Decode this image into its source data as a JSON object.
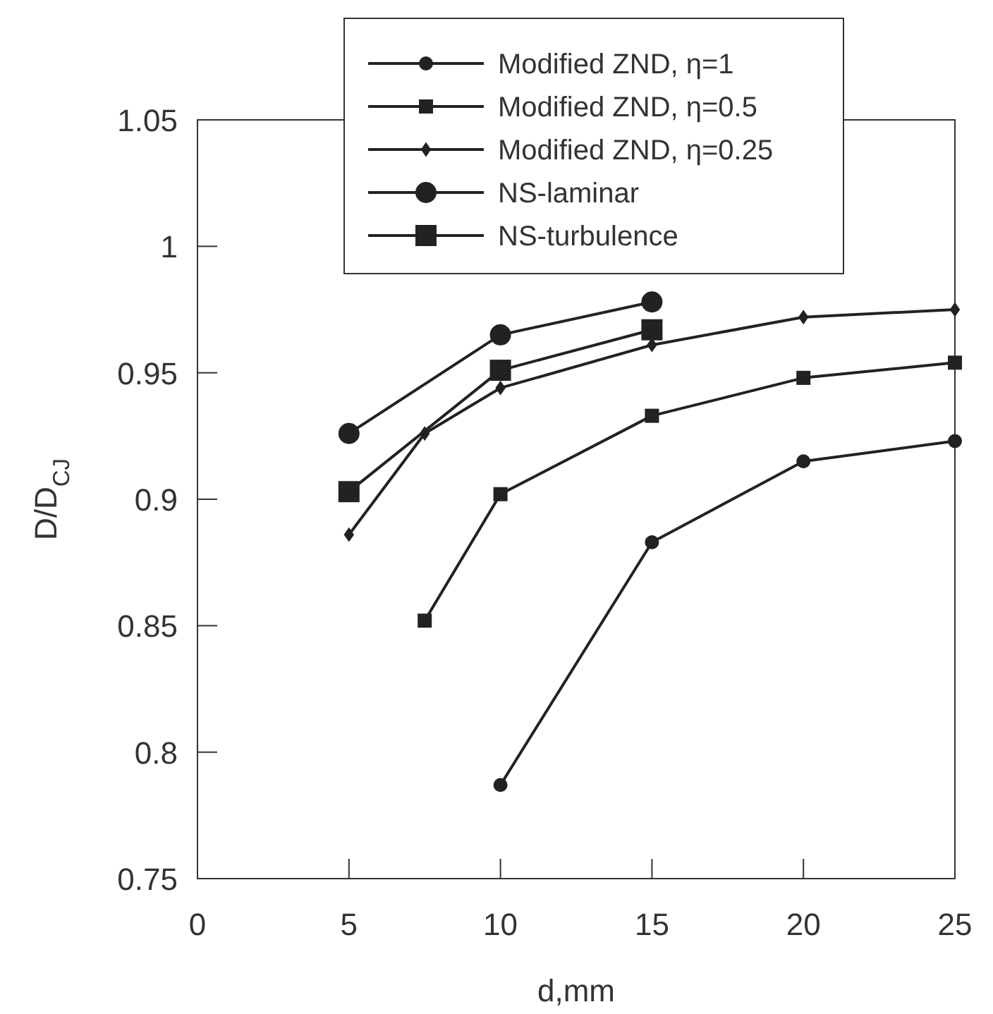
{
  "chart_data": {
    "type": "line",
    "xlabel": "d,mm",
    "ylabel": "D/D$_{CJ}$",
    "xlim": [
      0,
      25
    ],
    "ylim": [
      0.75,
      1.05
    ],
    "xticks": [
      0,
      5,
      10,
      15,
      20,
      25
    ],
    "yticks": [
      0.75,
      0.8,
      0.85,
      0.9,
      0.95,
      1,
      1.05
    ],
    "legend": "top",
    "grid": false,
    "line_style": "solid",
    "series": [
      {
        "name": "Modified ZND, η=1",
        "color": "#222222",
        "marker": "circle",
        "x": [
          10,
          15,
          20,
          25
        ],
        "values": [
          0.787,
          0.883,
          0.915,
          0.923
        ]
      },
      {
        "name": "Modified ZND, η=0.5",
        "color": "#222222",
        "marker": "square",
        "x": [
          7.5,
          10,
          15,
          20,
          25
        ],
        "values": [
          0.852,
          0.902,
          0.933,
          0.948,
          0.954
        ]
      },
      {
        "name": "Modified ZND, η=0.25",
        "color": "#222222",
        "marker": "diamond",
        "x": [
          5,
          7.5,
          10,
          15,
          20,
          25
        ],
        "values": [
          0.886,
          0.926,
          0.944,
          0.961,
          0.972,
          0.975
        ]
      },
      {
        "name": "NS-laminar",
        "color": "#222222",
        "marker": "circle",
        "x": [
          5,
          10,
          15
        ],
        "values": [
          0.926,
          0.965,
          0.978
        ]
      },
      {
        "name": "NS-turbulence",
        "color": "#222222",
        "marker": "square",
        "x": [
          5,
          10,
          15
        ],
        "values": [
          0.903,
          0.951,
          0.967
        ]
      }
    ]
  }
}
